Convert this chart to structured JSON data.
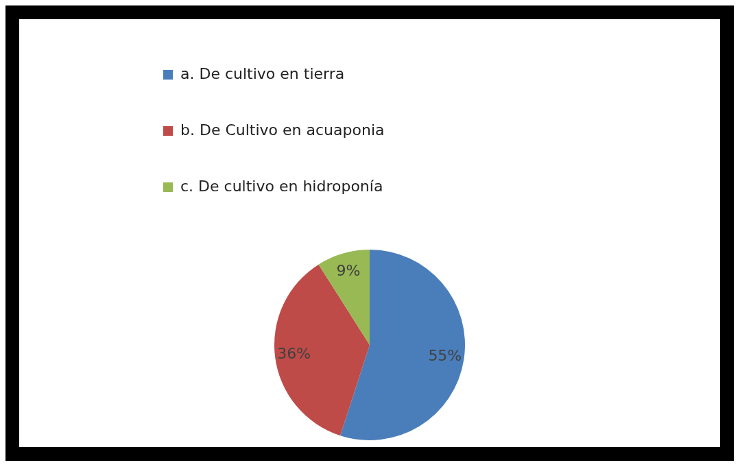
{
  "chart_data": {
    "type": "pie",
    "categories": [
      "a. De cultivo en tierra",
      "b. De Cultivo en acuaponia",
      "c. De cultivo en hidroponía"
    ],
    "values": [
      55,
      36,
      9
    ],
    "colors": [
      "#4a7ebb",
      "#be4b48",
      "#98b954"
    ],
    "value_labels": [
      "55%",
      "36%",
      "9%"
    ],
    "legend": "top left"
  }
}
